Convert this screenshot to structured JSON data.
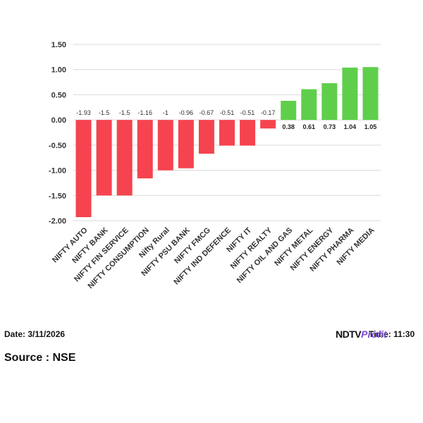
{
  "chart_data": {
    "type": "bar",
    "categories": [
      "NIFTY AUTO",
      "NIFTY BANK",
      "NIFTY FIN SERVICE",
      "NIFTY CONSUMPTION",
      "Nifty Rural",
      "NIFTY PSU BANK",
      "NIFTY FMCG",
      "NIFTY IND DEFENCE",
      "NIFTY IT",
      "NIFTY REALTY",
      "NIFTY OIL AND GAS",
      "NIFTY METAL",
      "NIFTY ENERGY",
      "NIFTY PHARMA",
      "NIFTY MEDIA"
    ],
    "values": [
      -1.93,
      -1.5,
      -1.5,
      -1.16,
      -1,
      -0.96,
      -0.67,
      -0.51,
      -0.51,
      -0.17,
      0.38,
      0.61,
      0.73,
      1.04,
      1.05
    ],
    "data_labels": [
      "-1.93",
      "-1.5",
      "-1.5",
      "-1.16",
      "-1",
      "-0.96",
      "-0.67",
      "-0.51",
      "-0.51",
      "-0.17",
      "0.38",
      "0.61",
      "0.73",
      "1.04",
      "1.05"
    ],
    "ylim": [
      -2.0,
      1.5
    ],
    "yticks": [
      1.5,
      1.0,
      0.5,
      0.0,
      -0.5,
      -1.0,
      -1.5,
      -2.0
    ],
    "ytick_labels": [
      "1.50",
      "1.00",
      "0.50",
      "0.00",
      "-0.50",
      "-1.00",
      "-1.50",
      "-2.00"
    ],
    "grid": true,
    "colors": {
      "negative": "#f5444f",
      "positive": "#5fcf4b",
      "grid": "#d9d9d9"
    }
  },
  "footer": {
    "date": "Date: 3/11/2026",
    "time": "Time: 11:30",
    "source": "Source : NSE",
    "brand_ndtv": "NDTV",
    "brand_profit": "Profit"
  }
}
